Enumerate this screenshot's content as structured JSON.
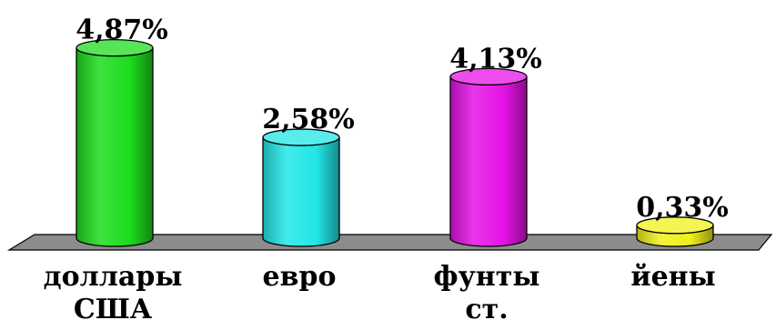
{
  "chart_data": {
    "type": "bar",
    "categories": [
      [
        "доллары",
        "США"
      ],
      [
        "евро"
      ],
      [
        "фунты",
        "ст."
      ],
      [
        "йены"
      ]
    ],
    "values": [
      4.87,
      2.58,
      4.13,
      0.33
    ],
    "data_labels": [
      "4,87%",
      "2,58%",
      "4,13%",
      "0,33%"
    ],
    "colors": [
      "#1ddc1d",
      "#22e6e6",
      "#e612e6",
      "#f0f01a"
    ],
    "ylim": [
      0,
      5
    ],
    "title": "",
    "xlabel": "",
    "ylabel": "",
    "grid": false,
    "legend": "none"
  }
}
